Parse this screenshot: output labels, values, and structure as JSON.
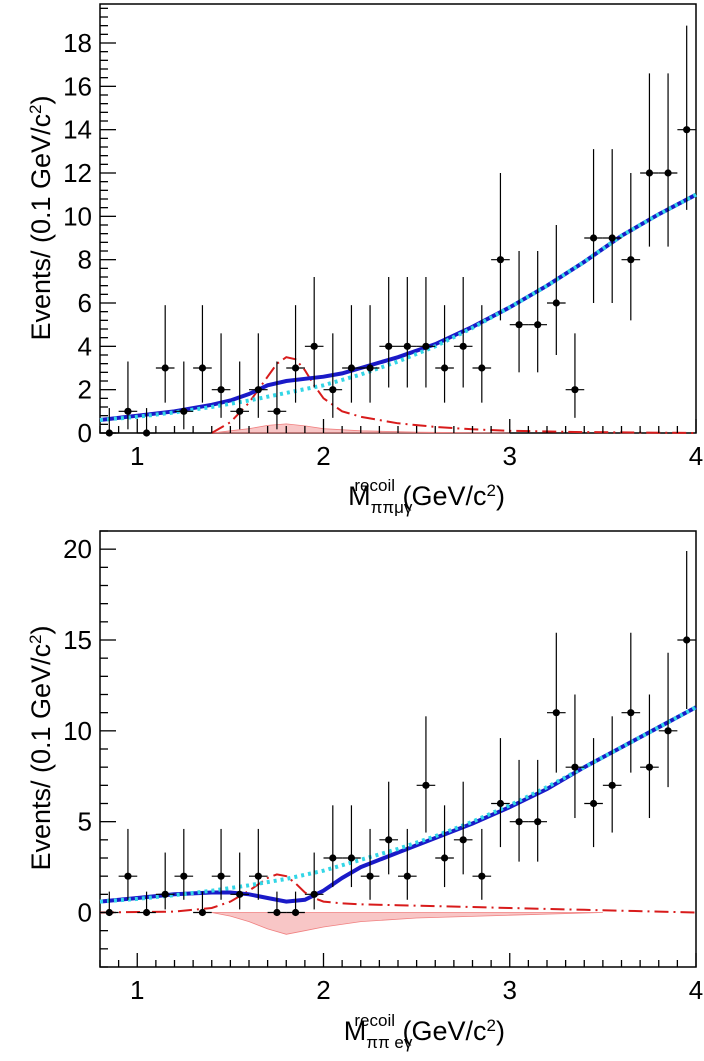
{
  "chart_data": [
    {
      "type": "scatter",
      "ylabel": "Events/ (0.1 GeV/c",
      "ylabel_sup": "2",
      "ylabel_end": ")",
      "xlabel": "M",
      "xlabel_sub": "ππμγ",
      "xlabel_sup": "recoil",
      "xlabel_unit": " (GeV/c",
      "xlabel_unit_sup": "2",
      "xlabel_end": ")",
      "xlim": [
        0.8,
        4.0
      ],
      "ylim": [
        0,
        19.8
      ],
      "x_ticks": [
        1,
        2,
        3,
        4
      ],
      "x_tick_labels": [
        "1",
        "2",
        "3",
        "4"
      ],
      "y_ticks": [
        0,
        2,
        4,
        6,
        8,
        10,
        12,
        14,
        16,
        18
      ],
      "y_tick_labels": [
        "0",
        "2",
        "4",
        "6",
        "8",
        "10",
        "12",
        "14",
        "16",
        "18"
      ],
      "data_points": {
        "x": [
          0.85,
          0.95,
          1.05,
          1.15,
          1.25,
          1.35,
          1.45,
          1.55,
          1.65,
          1.75,
          1.85,
          1.95,
          2.05,
          2.15,
          2.25,
          2.35,
          2.45,
          2.55,
          2.65,
          2.75,
          2.85,
          2.95,
          3.05,
          3.15,
          3.25,
          3.35,
          3.45,
          3.55,
          3.65,
          3.75,
          3.85,
          3.95
        ],
        "y": [
          0,
          1,
          0,
          3,
          1,
          3,
          2,
          1,
          2,
          1,
          3,
          4,
          2,
          3,
          3,
          4,
          4,
          4,
          3,
          4,
          3,
          8,
          5,
          5,
          6,
          2,
          9,
          9,
          8,
          12,
          12,
          14
        ],
        "yerr_up": [
          1.15,
          2.3,
          1.15,
          2.9,
          2.3,
          2.9,
          2.6,
          2.3,
          2.6,
          2.3,
          2.9,
          3.2,
          2.6,
          2.9,
          2.9,
          3.2,
          3.2,
          3.2,
          2.9,
          3.2,
          2.9,
          4.0,
          3.4,
          3.4,
          3.6,
          2.6,
          4.1,
          4.1,
          4.0,
          4.6,
          4.6,
          4.8
        ],
        "yerr_down": [
          0,
          0.83,
          0,
          1.6,
          0.83,
          1.6,
          1.3,
          0.83,
          1.3,
          0.83,
          1.6,
          1.9,
          1.3,
          1.6,
          1.6,
          1.9,
          1.9,
          1.9,
          1.6,
          1.9,
          1.6,
          2.8,
          2.2,
          2.2,
          2.4,
          1.3,
          3.0,
          3.0,
          2.8,
          3.4,
          3.4,
          3.7
        ],
        "xerr": 0.05
      },
      "curves": {
        "total_fit": {
          "x": [
            0.8,
            1.0,
            1.2,
            1.4,
            1.5,
            1.6,
            1.7,
            1.8,
            1.9,
            2.0,
            2.1,
            2.2,
            2.4,
            2.6,
            2.8,
            3.0,
            3.2,
            3.4,
            3.6,
            3.8,
            4.0
          ],
          "y": [
            0.6,
            0.8,
            1.0,
            1.3,
            1.5,
            1.8,
            2.2,
            2.4,
            2.5,
            2.6,
            2.75,
            3.0,
            3.5,
            4.1,
            4.9,
            5.8,
            6.8,
            7.9,
            9.1,
            10.1,
            11.0
          ]
        },
        "background": {
          "x": [
            0.8,
            1.0,
            1.2,
            1.4,
            1.6,
            1.8,
            2.0,
            2.2,
            2.4,
            2.6,
            2.8,
            3.0,
            3.2,
            3.4,
            3.6,
            3.8,
            4.0
          ],
          "y": [
            0.6,
            0.75,
            0.95,
            1.2,
            1.5,
            1.85,
            2.2,
            2.7,
            3.3,
            4.0,
            4.85,
            5.8,
            6.8,
            7.9,
            9.1,
            10.1,
            11.0
          ]
        },
        "signal": {
          "x": [
            1.4,
            1.5,
            1.6,
            1.7,
            1.75,
            1.8,
            1.85,
            1.9,
            1.95,
            2.0,
            2.1,
            2.2,
            2.4,
            2.6,
            2.8,
            3.0,
            3.4,
            4.0
          ],
          "y": [
            0.0,
            0.5,
            1.4,
            2.6,
            3.2,
            3.5,
            3.4,
            2.9,
            2.2,
            1.6,
            1.0,
            0.75,
            0.45,
            0.28,
            0.17,
            0.1,
            0.04,
            0.0
          ]
        },
        "peaking_bkg": {
          "x": [
            1.4,
            1.5,
            1.6,
            1.7,
            1.8,
            1.9,
            2.0,
            2.2,
            2.5,
            3.0
          ],
          "y": [
            0.0,
            0.1,
            0.2,
            0.35,
            0.42,
            0.33,
            0.2,
            0.1,
            0.04,
            0.0
          ]
        }
      },
      "colors": {
        "total_fit": "#1a1ac8",
        "background": "#33d6e6",
        "signal": "#d81b1b",
        "peaking_bkg": "#f08080",
        "points": "#000000"
      }
    },
    {
      "type": "scatter",
      "ylabel": "Events/ (0.1 GeV/c",
      "ylabel_sup": "2",
      "ylabel_end": ")",
      "xlabel": "M",
      "xlabel_sub": "ππ eγ",
      "xlabel_sup": "recoil",
      "xlabel_unit": " (GeV/c",
      "xlabel_unit_sup": "2",
      "xlabel_end": ")",
      "xlim": [
        0.8,
        4.0
      ],
      "ylim": [
        -3.0,
        21.0
      ],
      "x_ticks": [
        1,
        2,
        3,
        4
      ],
      "x_tick_labels": [
        "1",
        "2",
        "3",
        "4"
      ],
      "y_ticks": [
        0,
        5,
        10,
        15,
        20
      ],
      "y_tick_labels": [
        "0",
        "5",
        "10",
        "15",
        "20"
      ],
      "data_points": {
        "x": [
          0.85,
          0.95,
          1.05,
          1.15,
          1.25,
          1.35,
          1.45,
          1.55,
          1.65,
          1.75,
          1.85,
          1.95,
          2.05,
          2.15,
          2.25,
          2.35,
          2.45,
          2.55,
          2.65,
          2.75,
          2.85,
          2.95,
          3.05,
          3.15,
          3.25,
          3.35,
          3.45,
          3.55,
          3.65,
          3.75,
          3.85,
          3.95
        ],
        "y": [
          0,
          2,
          0,
          1,
          2,
          0,
          2,
          1,
          2,
          0,
          0,
          1,
          3,
          3,
          2,
          4,
          2,
          7,
          3,
          4,
          2,
          6,
          5,
          5,
          11,
          8,
          6,
          7,
          11,
          8,
          10,
          15
        ],
        "yerr_up": [
          1.15,
          2.6,
          1.15,
          2.3,
          2.6,
          1.15,
          2.6,
          2.3,
          2.6,
          1.15,
          1.15,
          2.3,
          2.9,
          2.9,
          2.6,
          3.2,
          2.6,
          3.8,
          2.9,
          3.2,
          2.6,
          3.6,
          3.4,
          3.4,
          4.4,
          4.0,
          3.6,
          3.8,
          4.4,
          4.0,
          4.3,
          4.9
        ],
        "yerr_down": [
          0,
          1.3,
          0,
          0.83,
          1.3,
          0,
          1.3,
          0.83,
          1.3,
          0,
          0,
          0.83,
          1.6,
          1.6,
          1.3,
          1.9,
          1.3,
          2.6,
          1.6,
          1.9,
          1.3,
          2.4,
          2.2,
          2.2,
          3.3,
          2.8,
          2.4,
          2.6,
          3.3,
          2.8,
          3.1,
          3.8
        ],
        "xerr": 0.05
      },
      "curves": {
        "total_fit": {
          "x": [
            0.8,
            1.0,
            1.2,
            1.4,
            1.5,
            1.6,
            1.7,
            1.8,
            1.9,
            2.0,
            2.1,
            2.2,
            2.4,
            2.6,
            2.8,
            3.0,
            3.2,
            3.4,
            3.6,
            3.8,
            4.0
          ],
          "y": [
            0.6,
            0.8,
            1.0,
            1.1,
            1.1,
            1.0,
            0.8,
            0.6,
            0.7,
            1.2,
            1.9,
            2.5,
            3.3,
            4.1,
            4.9,
            5.8,
            6.8,
            8.0,
            9.1,
            10.2,
            11.3
          ]
        },
        "background": {
          "x": [
            0.8,
            1.0,
            1.2,
            1.4,
            1.6,
            1.8,
            2.0,
            2.2,
            2.4,
            2.6,
            2.8,
            3.0,
            3.2,
            3.4,
            3.6,
            3.8,
            4.0
          ],
          "y": [
            0.6,
            0.75,
            0.95,
            1.2,
            1.5,
            1.85,
            2.3,
            2.9,
            3.5,
            4.2,
            5.0,
            5.9,
            6.9,
            8.0,
            9.1,
            10.2,
            11.3
          ]
        },
        "signal": {
          "x": [
            0.8,
            1.2,
            1.4,
            1.5,
            1.6,
            1.7,
            1.75,
            1.8,
            1.85,
            1.9,
            1.95,
            2.0,
            2.1,
            2.2,
            2.4,
            2.6,
            2.8,
            3.0,
            3.4,
            4.0
          ],
          "y": [
            0.0,
            0.05,
            0.25,
            0.6,
            1.2,
            1.9,
            2.1,
            2.0,
            1.6,
            1.1,
            0.8,
            0.6,
            0.5,
            0.45,
            0.4,
            0.35,
            0.3,
            0.25,
            0.15,
            0.0
          ]
        },
        "peaking_bkg": {
          "x": [
            1.4,
            1.5,
            1.6,
            1.7,
            1.8,
            1.9,
            2.0,
            2.2,
            2.5,
            3.0,
            3.5
          ],
          "y": [
            0.0,
            -0.2,
            -0.5,
            -0.9,
            -1.2,
            -1.0,
            -0.8,
            -0.5,
            -0.3,
            -0.15,
            0.0
          ]
        }
      },
      "colors": {
        "total_fit": "#1a1ac8",
        "background": "#33d6e6",
        "signal": "#d81b1b",
        "peaking_bkg": "#f08080",
        "points": "#000000"
      }
    }
  ]
}
